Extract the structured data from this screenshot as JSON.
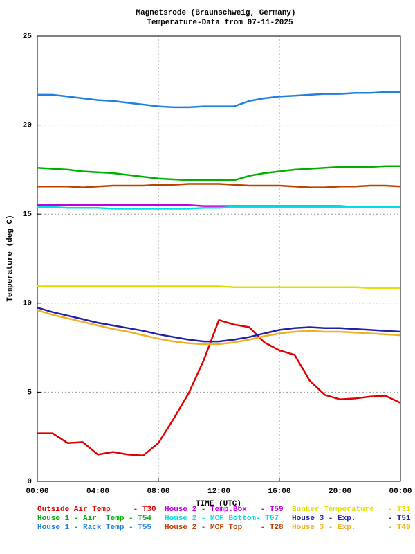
{
  "chart_data": {
    "type": "line",
    "title": "Magnetsrode (Braunschweig, Germany)",
    "subtitle": "Temperature-Data from 07-11-2025",
    "xlabel": "TIME (UTC)",
    "ylabel": "Temperature (deg C)",
    "x": [
      0,
      1,
      2,
      3,
      4,
      5,
      6,
      7,
      8,
      9,
      10,
      11,
      12,
      13,
      14,
      15,
      16,
      17,
      18,
      19,
      20,
      21,
      22,
      23,
      24
    ],
    "xlim": [
      0,
      24
    ],
    "xticks": [
      {
        "value": 0,
        "label": "00:00"
      },
      {
        "value": 4,
        "label": "04:00"
      },
      {
        "value": 8,
        "label": "08:00"
      },
      {
        "value": 12,
        "label": "12:00"
      },
      {
        "value": 16,
        "label": "16:00"
      },
      {
        "value": 20,
        "label": "20:00"
      },
      {
        "value": 24,
        "label": "00:00"
      }
    ],
    "ylim": [
      0,
      25
    ],
    "yticks": [
      0,
      5,
      10,
      15,
      20,
      25
    ],
    "grid": true,
    "series": [
      {
        "name": "Outside Air Temp     - T30",
        "color": "#e00000",
        "values": [
          2.7,
          2.7,
          2.15,
          2.2,
          1.5,
          1.65,
          1.5,
          1.45,
          2.15,
          3.5,
          4.95,
          6.8,
          9.05,
          8.8,
          8.65,
          7.8,
          7.35,
          7.1,
          5.65,
          4.85,
          4.6,
          4.65,
          4.75,
          4.8,
          4.4
        ]
      },
      {
        "name": "House 2 - Temp.Box   - T59",
        "color": "#c000e0",
        "values": [
          15.5,
          15.5,
          15.5,
          15.5,
          15.5,
          15.5,
          15.5,
          15.5,
          15.5,
          15.5,
          15.5,
          15.45,
          15.45,
          15.45,
          15.45,
          15.45,
          15.45,
          15.45,
          15.45,
          15.45,
          15.45,
          15.4,
          15.4,
          15.4,
          15.4
        ]
      },
      {
        "name": "Bunker Temperature   - T31",
        "color": "#e0e000",
        "values": [
          10.95,
          10.95,
          10.95,
          10.95,
          10.95,
          10.95,
          10.95,
          10.95,
          10.95,
          10.95,
          10.95,
          10.95,
          10.95,
          10.9,
          10.9,
          10.9,
          10.9,
          10.9,
          10.9,
          10.9,
          10.9,
          10.9,
          10.85,
          10.85,
          10.85
        ]
      },
      {
        "name": "House 1 - Air  Temp - T54",
        "color": "#00b000",
        "values": [
          17.6,
          17.55,
          17.5,
          17.4,
          17.35,
          17.3,
          17.2,
          17.1,
          17.0,
          16.95,
          16.9,
          16.9,
          16.9,
          16.9,
          17.15,
          17.3,
          17.4,
          17.5,
          17.55,
          17.6,
          17.65,
          17.65,
          17.65,
          17.7,
          17.7
        ]
      },
      {
        "name": "House 2 - MCF Bottom- T07",
        "color": "#00e0e0",
        "values": [
          15.4,
          15.4,
          15.35,
          15.35,
          15.35,
          15.3,
          15.3,
          15.3,
          15.3,
          15.3,
          15.3,
          15.35,
          15.35,
          15.4,
          15.4,
          15.4,
          15.4,
          15.4,
          15.4,
          15.4,
          15.4,
          15.4,
          15.4,
          15.4,
          15.4
        ]
      },
      {
        "name": "House 3 - Exp.       - T51",
        "color": "#2020a8",
        "values": [
          9.75,
          9.5,
          9.3,
          9.1,
          8.9,
          8.75,
          8.6,
          8.45,
          8.25,
          8.1,
          7.95,
          7.85,
          7.85,
          7.95,
          8.1,
          8.3,
          8.5,
          8.6,
          8.65,
          8.6,
          8.6,
          8.55,
          8.5,
          8.45,
          8.4
        ]
      },
      {
        "name": "House 1 - Rack Temp - T55",
        "color": "#2080e0",
        "values": [
          21.7,
          21.7,
          21.6,
          21.5,
          21.4,
          21.35,
          21.25,
          21.15,
          21.05,
          21.0,
          21.0,
          21.05,
          21.05,
          21.05,
          21.35,
          21.5,
          21.6,
          21.65,
          21.7,
          21.75,
          21.75,
          21.8,
          21.8,
          21.85,
          21.85
        ]
      },
      {
        "name": "House 2 - MCF Top    - T28",
        "color": "#c04000",
        "values": [
          16.55,
          16.55,
          16.55,
          16.5,
          16.55,
          16.6,
          16.6,
          16.6,
          16.65,
          16.65,
          16.7,
          16.7,
          16.7,
          16.65,
          16.6,
          16.6,
          16.6,
          16.55,
          16.5,
          16.5,
          16.55,
          16.55,
          16.6,
          16.6,
          16.55
        ]
      },
      {
        "name": "House 3 - Exp.       - T49",
        "color": "#f0b020",
        "values": [
          9.6,
          9.35,
          9.15,
          8.95,
          8.75,
          8.55,
          8.4,
          8.2,
          8.0,
          7.85,
          7.75,
          7.7,
          7.7,
          7.8,
          7.95,
          8.15,
          8.3,
          8.4,
          8.45,
          8.4,
          8.4,
          8.35,
          8.3,
          8.25,
          8.2
        ]
      }
    ]
  }
}
